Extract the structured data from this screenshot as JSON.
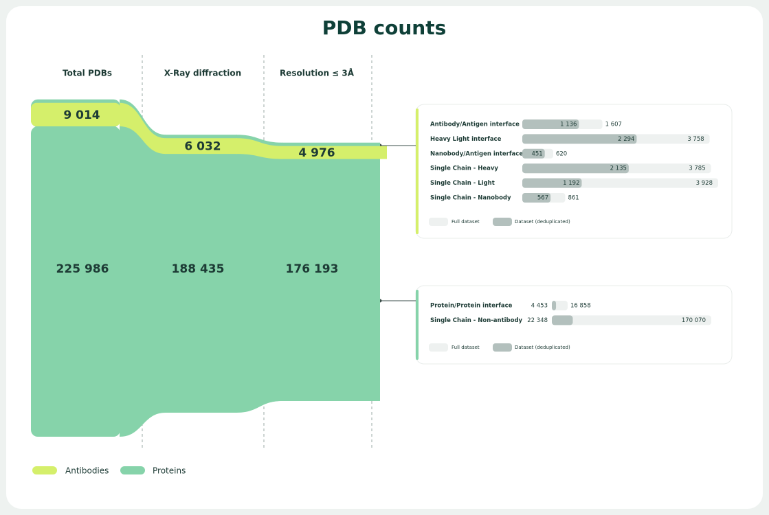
{
  "chart_data": [
    {
      "type": "sankey",
      "title": "PDB counts",
      "categories": [
        "Total PDBs",
        "X-Ray diffraction",
        "Resolution ≤ 3Å"
      ],
      "series": [
        {
          "name": "Antibodies",
          "color": "#d5ef6b",
          "values": [
            9014,
            6032,
            4976
          ],
          "value_labels": [
            "9 014",
            "6 032",
            "4 976"
          ]
        },
        {
          "name": "Proteins",
          "color": "#86d3aa",
          "values": [
            225986,
            188435,
            176193
          ],
          "value_labels": [
            "225 986",
            "188 435",
            "176 193"
          ]
        }
      ]
    },
    {
      "type": "hbar",
      "accent": "#d5ef6b",
      "categories": [
        "Antibody/Antigen interface",
        "Heavy Light interface",
        "Nanobody/Antigen interface",
        "Single Chain - Heavy",
        "Single Chain - Light",
        "Single Chain - Nanobody"
      ],
      "series": [
        {
          "name": "Full dataset",
          "color": "#eef1f0",
          "values": [
            1607,
            3758,
            620,
            3785,
            3928,
            861
          ],
          "value_labels": [
            "1 607",
            "3 758",
            "620",
            "3 785",
            "3 928",
            "861"
          ]
        },
        {
          "name": "Dataset (deduplicated)",
          "color": "#b3c0bd",
          "values": [
            1136,
            2294,
            451,
            2135,
            1192,
            567
          ],
          "value_labels": [
            "1 136",
            "2 294",
            "451",
            "2 135",
            "1 192",
            "567"
          ]
        }
      ]
    },
    {
      "type": "hbar",
      "accent": "#86d3aa",
      "categories": [
        "Protein/Protein interface",
        "Single Chain - Non-antibody"
      ],
      "series": [
        {
          "name": "Full dataset",
          "color": "#eef1f0",
          "values": [
            16858,
            170070
          ],
          "value_labels": [
            "16 858",
            "170 070"
          ]
        },
        {
          "name": "Dataset (deduplicated)",
          "color": "#b3c0bd",
          "values": [
            4453,
            22348
          ],
          "value_labels": [
            "4 453",
            "22 348"
          ]
        }
      ]
    }
  ]
}
